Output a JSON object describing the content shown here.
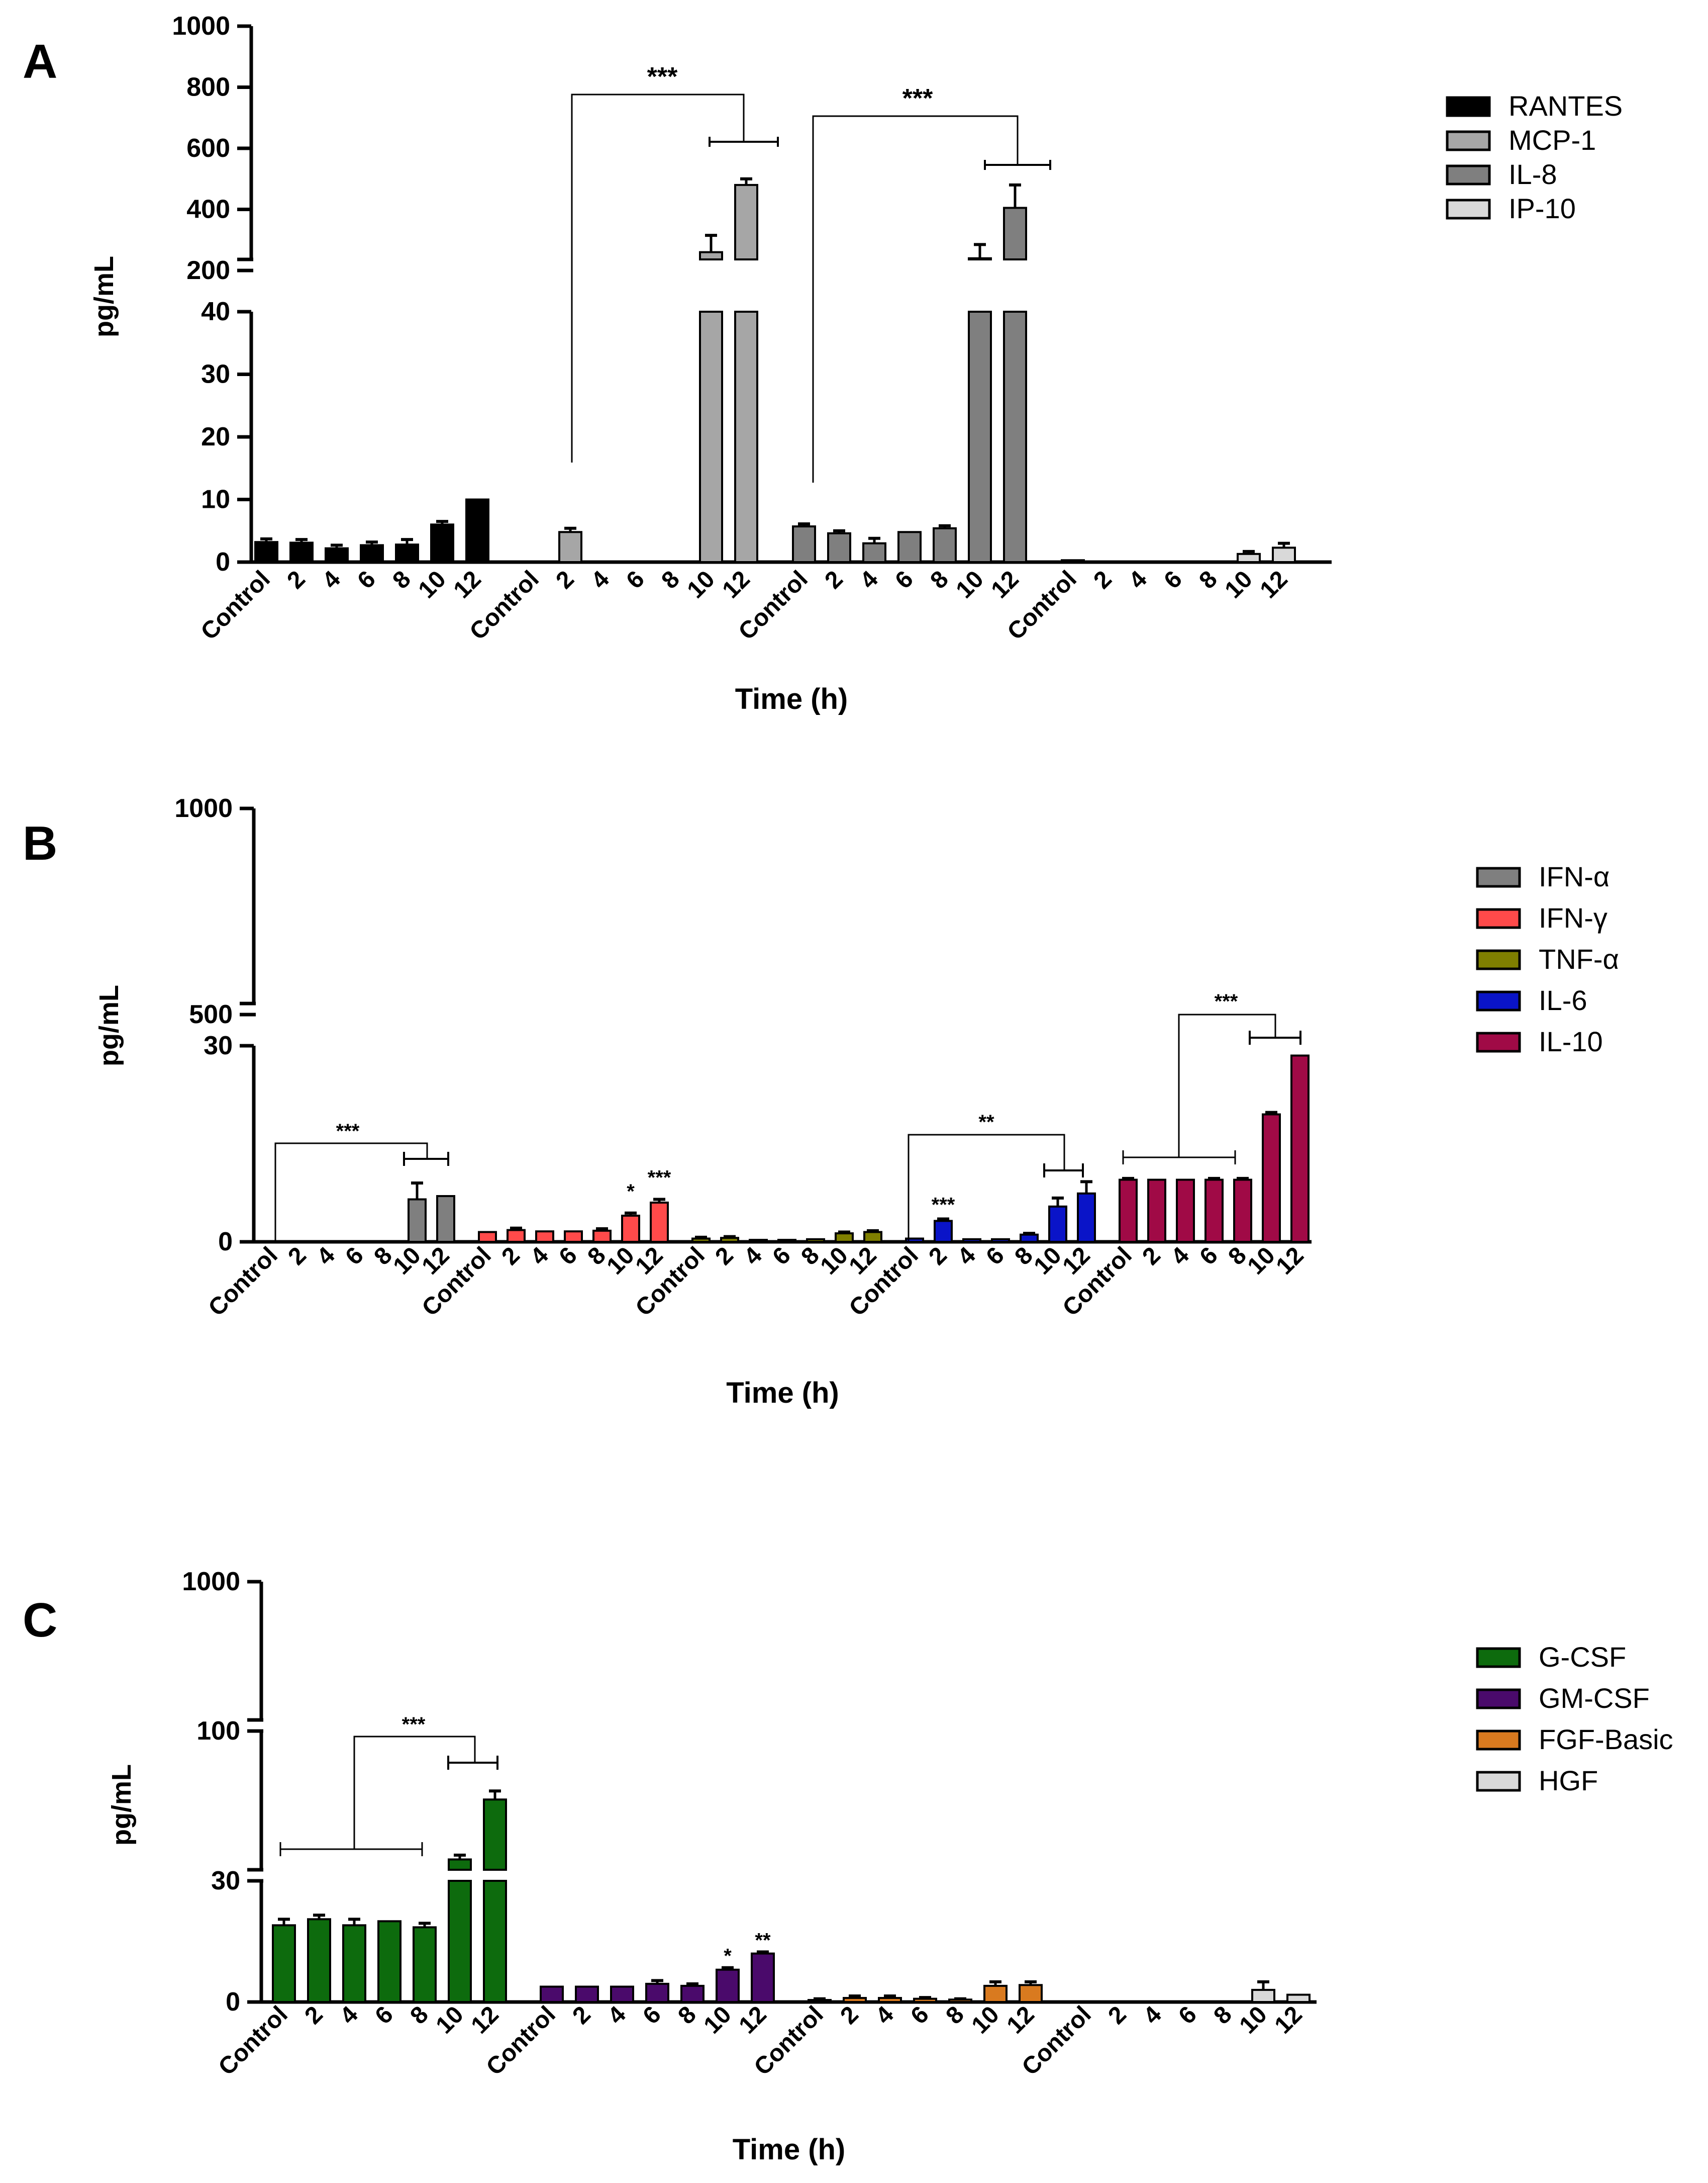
{
  "time_labels": [
    "Control",
    "2",
    "4",
    "6",
    "8",
    "10",
    "12"
  ],
  "colors": {
    "RANTES": "#000000",
    "MCP-1": "#a6a6a6",
    "IL-8": "#7f7f7f",
    "IP-10": "#d9d9d9",
    "IFN-α": "#7f7f7f",
    "IFN-γ": "#ff4a4a",
    "TNF-α": "#7f7f00",
    "IL-6": "#0a14c8",
    "IL-10": "#a00a46",
    "G-CSF": "#0d6b0d",
    "GM-CSF": "#4a0a6b",
    "FGF-Basic": "#d97a1f",
    "HGF": "#d9d9d9"
  },
  "chart_data": [
    {
      "panel": "A",
      "type": "bar",
      "ylabel": "pg/mL",
      "xlabel": "Time (h)",
      "y_axis_segments": [
        {
          "range": [
            0,
            40
          ],
          "ticks": [
            0,
            10,
            20,
            30,
            40
          ]
        },
        {
          "range": [
            200,
            1000
          ],
          "ticks": [
            200,
            400,
            600,
            800,
            1000
          ]
        }
      ],
      "categories": [
        "Control",
        "2",
        "4",
        "6",
        "8",
        "10",
        "12"
      ],
      "series": [
        {
          "name": "RANTES",
          "values": [
            3.2,
            3.1,
            2.2,
            2.7,
            2.8,
            6.0,
            10.0
          ],
          "errors": [
            0.5,
            0.5,
            0.5,
            0.5,
            0.8,
            0.5,
            0
          ]
        },
        {
          "name": "MCP-1",
          "values": [
            0,
            4.8,
            0,
            0,
            0,
            260,
            480
          ],
          "errors": [
            0,
            0.6,
            0,
            0,
            0,
            55,
            20
          ]
        },
        {
          "name": "IL-8",
          "values": [
            5.7,
            4.6,
            3.0,
            4.8,
            5.4,
            240,
            405
          ],
          "errors": [
            0.4,
            0.4,
            0.8,
            0,
            0.4,
            45,
            75
          ]
        },
        {
          "name": "IP-10",
          "values": [
            0.3,
            0,
            0,
            0,
            0,
            1.3,
            2.3
          ],
          "errors": [
            0,
            0,
            0,
            0,
            0,
            0.4,
            0.7
          ]
        }
      ],
      "significance": [
        "***",
        "***"
      ],
      "legend_position": "right"
    },
    {
      "panel": "B",
      "type": "bar",
      "ylabel": "pg/mL",
      "xlabel": "Time (h)",
      "y_axis_segments": [
        {
          "range": [
            0,
            30
          ],
          "ticks": [
            0,
            30
          ]
        },
        {
          "range": [
            500,
            1000
          ],
          "ticks": [
            500,
            1000
          ]
        }
      ],
      "categories": [
        "Control",
        "2",
        "4",
        "6",
        "8",
        "10",
        "12"
      ],
      "series": [
        {
          "name": "IFN-α",
          "values": [
            0,
            0,
            0,
            0,
            0,
            6.5,
            7.0
          ],
          "errors": [
            0,
            0,
            0,
            0,
            0,
            2.5,
            0
          ]
        },
        {
          "name": "IFN-γ",
          "values": [
            1.5,
            1.8,
            1.6,
            1.6,
            1.7,
            4.0,
            6.0
          ],
          "errors": [
            0,
            0.3,
            0,
            0,
            0.3,
            0.4,
            0.5
          ]
        },
        {
          "name": "TNF-α",
          "values": [
            0.5,
            0.6,
            0.3,
            0.3,
            0.4,
            1.3,
            1.5
          ],
          "errors": [
            0.2,
            0.2,
            0,
            0,
            0,
            0.2,
            0.2
          ]
        },
        {
          "name": "IL-6",
          "values": [
            0.5,
            3.2,
            0.4,
            0.4,
            1.1,
            5.4,
            7.4
          ],
          "errors": [
            0,
            0.3,
            0,
            0,
            0.2,
            1.3,
            1.8
          ]
        },
        {
          "name": "IL-10",
          "values": [
            9.5,
            9.5,
            9.5,
            9.5,
            9.5,
            19.5,
            28.5
          ],
          "errors": [
            0.2,
            0,
            0,
            0.2,
            0.2,
            0.3,
            0
          ]
        }
      ],
      "significance": [
        "***",
        "*",
        "***",
        "**",
        "***",
        "***"
      ],
      "legend_position": "right"
    },
    {
      "panel": "C",
      "type": "bar",
      "ylabel": "pg/mL",
      "xlabel": "Time (h)",
      "y_axis_segments": [
        {
          "range": [
            0,
            30
          ],
          "ticks": [
            0,
            30
          ]
        },
        {
          "range": [
            30,
            100
          ],
          "ticks": [
            100
          ]
        },
        {
          "range": [
            100,
            1000
          ],
          "ticks": [
            1000
          ]
        }
      ],
      "categories": [
        "Control",
        "2",
        "4",
        "6",
        "8",
        "10",
        "12"
      ],
      "series": [
        {
          "name": "G-CSF",
          "values": [
            19.0,
            20.5,
            19.0,
            20.0,
            18.5,
            40.0,
            68.0
          ],
          "errors": [
            1.5,
            1.0,
            1.5,
            0,
            1.0,
            2.0,
            4.0
          ]
        },
        {
          "name": "GM-CSF",
          "values": [
            3.8,
            3.8,
            3.8,
            4.5,
            4.0,
            8.0,
            12.0
          ],
          "errors": [
            0,
            0,
            0,
            0.8,
            0.5,
            0.5,
            0.4
          ]
        },
        {
          "name": "FGF-Basic",
          "values": [
            0.5,
            1.0,
            1.0,
            0.8,
            0.6,
            4.0,
            4.2
          ],
          "errors": [
            0.3,
            0.5,
            0.5,
            0.3,
            0.2,
            1.0,
            0.8
          ]
        },
        {
          "name": "HGF",
          "values": [
            0,
            0,
            0,
            0,
            0,
            3.0,
            1.8
          ],
          "errors": [
            0,
            0,
            0,
            0,
            0,
            2.0,
            0
          ]
        }
      ],
      "significance": [
        "***",
        "*",
        "**"
      ],
      "legend_position": "right"
    }
  ]
}
